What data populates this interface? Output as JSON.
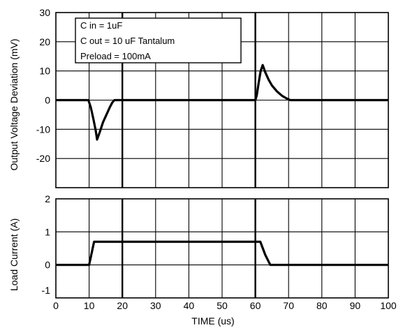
{
  "chart_data": [
    {
      "type": "line",
      "panel": "top",
      "ylabel": "Output Voltage Deviation (mV)",
      "ylim": [
        -30,
        30
      ],
      "yticks": [
        30,
        20,
        10,
        0,
        -10,
        -20
      ],
      "xlim": [
        0,
        100
      ],
      "grid": true,
      "legend_lines": [
        "C in = 1uF",
        "C out = 10 uF  Tantalum",
        "Preload = 100mA"
      ],
      "series": [
        {
          "x": [
            0,
            9.8,
            10.5,
            11.2,
            12.0,
            12.4,
            13.2,
            14.2,
            15.2,
            16.2,
            17.0,
            17.6,
            18.5,
            60.0,
            60.4,
            61.0,
            61.6,
            62.2,
            63.0,
            64.0,
            65.0,
            66.5,
            68.0,
            69.5,
            70.5,
            100
          ],
          "y": [
            0,
            0,
            -2.5,
            -6,
            -10.5,
            -13.5,
            -11,
            -7.5,
            -5,
            -2.5,
            -0.8,
            0,
            0,
            0,
            1.5,
            6,
            10,
            12,
            9.5,
            7,
            5,
            3,
            1.5,
            0.5,
            0,
            0
          ]
        }
      ]
    },
    {
      "type": "line",
      "panel": "bottom",
      "ylabel": "Load Current (A)",
      "xlabel": "TIME (us)",
      "ylim": [
        -1,
        2
      ],
      "yticks": [
        2,
        1,
        0,
        -1
      ],
      "xlim": [
        0,
        100
      ],
      "xticks": [
        0,
        10,
        20,
        30,
        40,
        50,
        60,
        70,
        80,
        90,
        100
      ],
      "grid": true,
      "series": [
        {
          "x": [
            0,
            10,
            11.5,
            61.5,
            63.0,
            64.5,
            100
          ],
          "y": [
            0,
            0,
            0.7,
            0.7,
            0.3,
            0,
            0
          ]
        }
      ]
    }
  ]
}
